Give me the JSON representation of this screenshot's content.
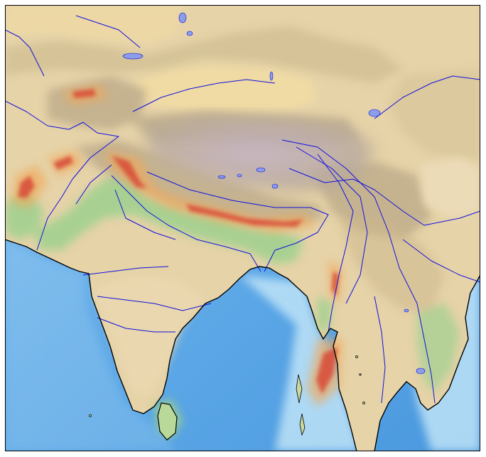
{
  "map": {
    "colors": {
      "deep_ocean": "#5aa6e6",
      "shallow_ocean": "#bfe3f7",
      "lowland": "#a6d79a",
      "plain": "#e9dcb8",
      "upland": "#d7c08c",
      "mountain": "#b9a487",
      "plateau": "#bcaab8",
      "desert": "#efd9a6",
      "river": "#1010e0",
      "lake": "#8c9ee8",
      "coast": "#000000",
      "hotspot_core": "#d8503a",
      "hotspot_halo": "#f0a85a"
    },
    "layers": [
      "shaded-relief",
      "rivers",
      "lakes",
      "coastline",
      "density-hotspots"
    ]
  }
}
